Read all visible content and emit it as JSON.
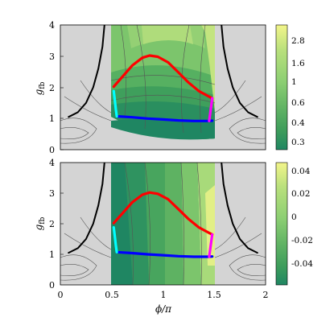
{
  "chart_data": [
    {
      "type": "heatmap",
      "panel": "top",
      "ylabel_main": "g",
      "ylabel_sub": "fb",
      "xlim": [
        0,
        2
      ],
      "ylim": [
        0,
        4
      ],
      "yticks": [
        "0",
        "1",
        "2",
        "3",
        "4"
      ],
      "colorbar": {
        "ticks": [
          "2.8",
          "1.6",
          "1",
          "0.6",
          "0.4",
          "0.3"
        ],
        "colors": [
          "#f3f58a",
          "#b9e07c",
          "#8dcf73",
          "#64b565",
          "#3d9c5b",
          "#1f8662"
        ]
      },
      "curves": [
        {
          "color": "#ff0000",
          "x": [
            0.52,
            0.6,
            0.7,
            0.8,
            0.87,
            0.95,
            1.05,
            1.15,
            1.25,
            1.35,
            1.45,
            1.48
          ],
          "y": [
            2.02,
            2.32,
            2.7,
            2.95,
            3.02,
            2.98,
            2.8,
            2.48,
            2.15,
            1.88,
            1.7,
            1.65
          ]
        },
        {
          "color": "#0000ff",
          "x": [
            0.55,
            0.7,
            0.85,
            1.0,
            1.15,
            1.3,
            1.45,
            1.48
          ],
          "y": [
            1.07,
            1.04,
            1.0,
            0.97,
            0.94,
            0.92,
            0.92,
            0.93
          ]
        },
        {
          "color": "#00ffff",
          "x": [
            0.52,
            0.53,
            0.54,
            0.55
          ],
          "y": [
            1.88,
            1.6,
            1.3,
            1.07
          ]
        },
        {
          "color": "#ff00ff",
          "x": [
            1.48,
            1.47,
            1.46,
            1.45
          ],
          "y": [
            1.65,
            1.4,
            1.15,
            0.92
          ]
        },
        {
          "color": "#000000",
          "x": [
            0.08,
            0.17,
            0.25,
            0.32,
            0.37,
            0.41,
            0.43
          ],
          "y": [
            1.05,
            1.2,
            1.5,
            2.0,
            2.6,
            3.3,
            4.0
          ]
        },
        {
          "color": "#000000",
          "x": [
            1.92,
            1.83,
            1.75,
            1.68,
            1.63,
            1.59,
            1.57
          ],
          "y": [
            1.05,
            1.2,
            1.5,
            2.0,
            2.6,
            3.3,
            4.0
          ]
        }
      ]
    },
    {
      "type": "heatmap",
      "panel": "bottom",
      "ylabel_main": "g",
      "ylabel_sub": "fb",
      "xlabel_main": "ϕ",
      "xlabel_rest": "/π",
      "xlim": [
        0,
        2
      ],
      "ylim": [
        0,
        4
      ],
      "xticks": [
        "0",
        "0.5",
        "1",
        "1.5",
        "2"
      ],
      "yticks": [
        "0",
        "1",
        "2",
        "3",
        "4"
      ],
      "colorbar": {
        "ticks": [
          "0.04",
          "0.02",
          "0",
          "-0.02",
          "-0.04"
        ],
        "colors": [
          "#f3f58a",
          "#b9e07c",
          "#8dcf73",
          "#64b565",
          "#3d9c5b",
          "#1f8662"
        ]
      },
      "curves": [
        {
          "color": "#ff0000",
          "x": [
            0.52,
            0.6,
            0.7,
            0.8,
            0.87,
            0.95,
            1.05,
            1.15,
            1.25,
            1.35,
            1.45,
            1.48
          ],
          "y": [
            2.02,
            2.32,
            2.7,
            2.95,
            3.02,
            2.98,
            2.8,
            2.48,
            2.15,
            1.88,
            1.7,
            1.65
          ]
        },
        {
          "color": "#0000ff",
          "x": [
            0.55,
            0.7,
            0.85,
            1.0,
            1.15,
            1.3,
            1.45,
            1.48
          ],
          "y": [
            1.07,
            1.04,
            1.0,
            0.97,
            0.94,
            0.92,
            0.92,
            0.93
          ]
        },
        {
          "color": "#00ffff",
          "x": [
            0.52,
            0.53,
            0.54,
            0.55
          ],
          "y": [
            1.88,
            1.6,
            1.3,
            1.07
          ]
        },
        {
          "color": "#ff00ff",
          "x": [
            1.48,
            1.47,
            1.46,
            1.45
          ],
          "y": [
            1.65,
            1.4,
            1.15,
            0.92
          ]
        },
        {
          "color": "#000000",
          "x": [
            0.08,
            0.17,
            0.25,
            0.32,
            0.37,
            0.41,
            0.43
          ],
          "y": [
            1.05,
            1.2,
            1.5,
            2.0,
            2.6,
            3.3,
            4.0
          ]
        },
        {
          "color": "#000000",
          "x": [
            1.92,
            1.83,
            1.75,
            1.68,
            1.63,
            1.59,
            1.57
          ],
          "y": [
            1.05,
            1.2,
            1.5,
            2.0,
            2.6,
            3.3,
            4.0
          ]
        }
      ]
    }
  ]
}
